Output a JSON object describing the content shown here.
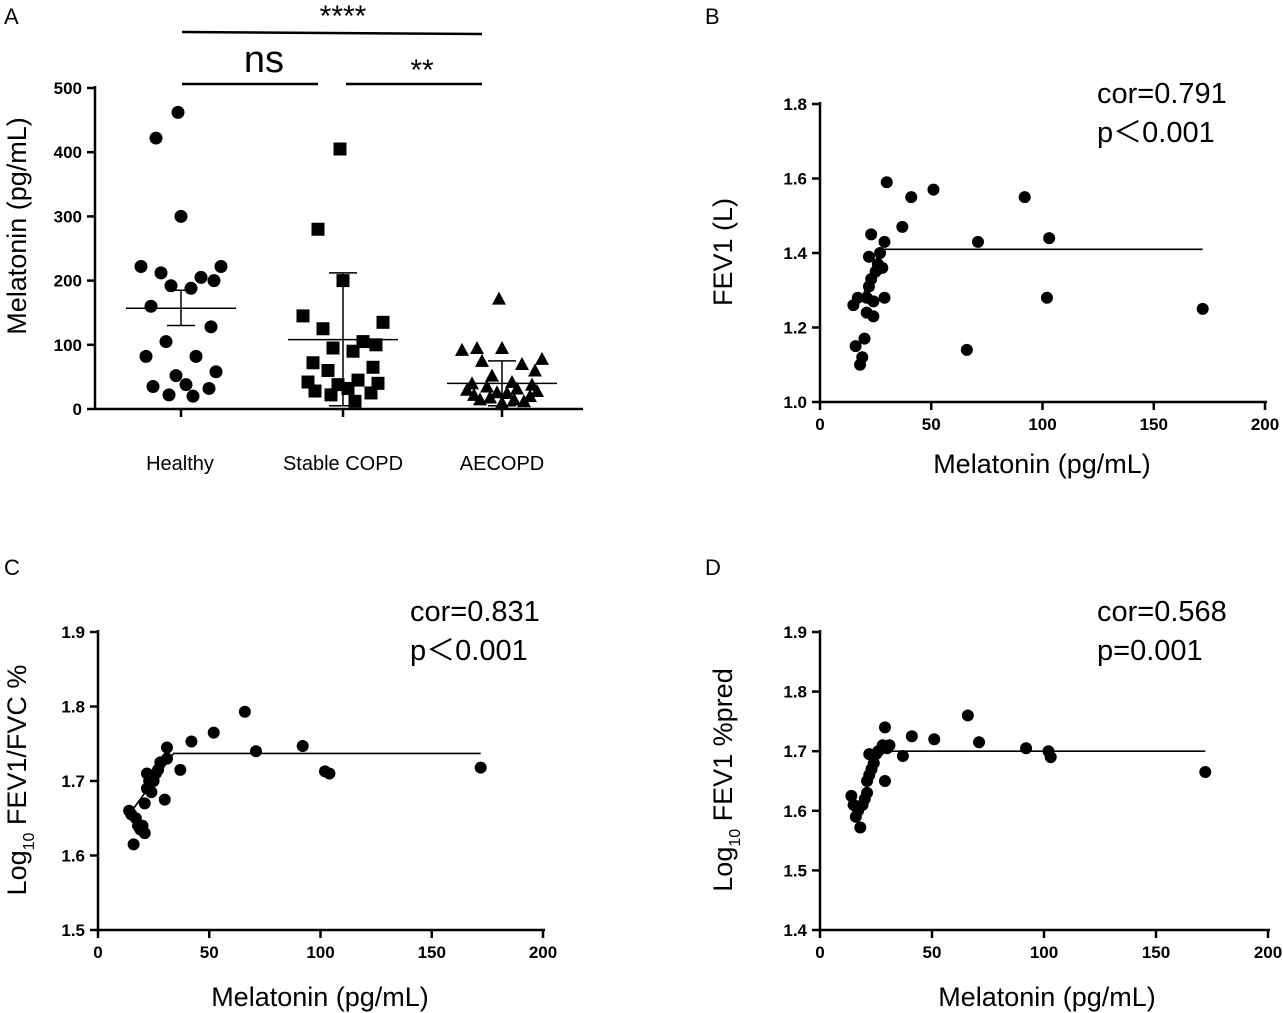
{
  "chart_data": [
    {
      "panel": "A",
      "type": "scatter",
      "ylabel": "Melatonin (pg/mL)",
      "ylim": [
        0,
        500
      ],
      "yticks": [
        0,
        100,
        200,
        300,
        400,
        500
      ],
      "categories": [
        "Healthy",
        "Stable COPD",
        "AECOPD"
      ],
      "series": [
        {
          "name": "Healthy",
          "marker": "circle",
          "mean": 157,
          "sem_low": 130,
          "sem_high": 185,
          "values": [
            462,
            422,
            300,
            222,
            222,
            212,
            205,
            200,
            192,
            188,
            160,
            128,
            105,
            82,
            82,
            58,
            52,
            38,
            35,
            32,
            22,
            20
          ]
        },
        {
          "name": "Stable COPD",
          "marker": "square",
          "mean": 108,
          "sd_low": 5,
          "sd_high": 212,
          "values": [
            405,
            280,
            200,
            145,
            135,
            125,
            105,
            100,
            95,
            90,
            72,
            65,
            60,
            45,
            42,
            40,
            38,
            32,
            28,
            25,
            22,
            12
          ]
        },
        {
          "name": "AECOPD",
          "marker": "triangle",
          "mean": 40,
          "sd_low": 5,
          "sd_high": 75,
          "values": [
            172,
            95,
            95,
            92,
            78,
            75,
            70,
            60,
            52,
            42,
            40,
            38,
            35,
            32,
            30,
            28,
            26,
            25,
            22,
            20,
            18,
            15,
            15,
            12,
            10
          ]
        }
      ],
      "comparisons": [
        {
          "groups": [
            "Healthy",
            "AECOPD"
          ],
          "label": "****"
        },
        {
          "groups": [
            "Healthy",
            "Stable COPD"
          ],
          "label": "ns"
        },
        {
          "groups": [
            "Stable COPD",
            "AECOPD"
          ],
          "label": "**"
        }
      ]
    },
    {
      "panel": "B",
      "type": "scatter",
      "xlabel": "Melatonin (pg/mL)",
      "ylabel": "FEV1 (L)",
      "xlim": [
        0,
        200
      ],
      "ylim": [
        1.0,
        1.8
      ],
      "xticks": [
        0,
        50,
        100,
        150,
        200
      ],
      "yticks": [
        1.0,
        1.2,
        1.4,
        1.6,
        1.8
      ],
      "ytick_labels": [
        "1.0",
        "1.2",
        "1.4",
        "1.6",
        "1.8"
      ],
      "stat_lines": [
        "cor=0.791",
        "p＜0.001"
      ],
      "fit": {
        "x_break": 27,
        "plateau": 1.41,
        "start": [
          19,
          1.28
        ]
      },
      "points": [
        [
          15,
          1.26
        ],
        [
          16,
          1.15
        ],
        [
          17,
          1.28
        ],
        [
          18,
          1.1
        ],
        [
          19,
          1.12
        ],
        [
          20,
          1.17
        ],
        [
          21,
          1.28
        ],
        [
          21,
          1.24
        ],
        [
          22,
          1.31
        ],
        [
          22,
          1.39
        ],
        [
          23,
          1.33
        ],
        [
          23,
          1.45
        ],
        [
          24,
          1.27
        ],
        [
          24,
          1.23
        ],
        [
          25,
          1.35
        ],
        [
          26,
          1.37
        ],
        [
          27,
          1.4
        ],
        [
          28,
          1.36
        ],
        [
          29,
          1.28
        ],
        [
          29,
          1.43
        ],
        [
          30,
          1.59
        ],
        [
          37,
          1.47
        ],
        [
          41,
          1.55
        ],
        [
          51,
          1.57
        ],
        [
          66,
          1.14
        ],
        [
          71,
          1.43
        ],
        [
          92,
          1.55
        ],
        [
          102,
          1.28
        ],
        [
          103,
          1.44
        ],
        [
          172,
          1.25
        ]
      ]
    },
    {
      "panel": "C",
      "type": "scatter",
      "xlabel": "Melatonin (pg/mL)",
      "ylabel": "Log10 FEV1/FVC %",
      "xlim": [
        0,
        200
      ],
      "ylim": [
        1.5,
        1.9
      ],
      "xticks": [
        0,
        50,
        100,
        150,
        200
      ],
      "yticks": [
        1.5,
        1.6,
        1.7,
        1.8,
        1.9
      ],
      "ytick_labels": [
        "1.5",
        "1.6",
        "1.7",
        "1.8",
        "1.9"
      ],
      "stat_lines": [
        "cor=0.831",
        "p＜0.001"
      ],
      "fit": {
        "x_break": 34,
        "plateau": 1.737,
        "start": [
          14,
          1.655
        ]
      },
      "points": [
        [
          14,
          1.66
        ],
        [
          15,
          1.655
        ],
        [
          16,
          1.615
        ],
        [
          17,
          1.65
        ],
        [
          18,
          1.64
        ],
        [
          19,
          1.635
        ],
        [
          20,
          1.64
        ],
        [
          21,
          1.67
        ],
        [
          21,
          1.63
        ],
        [
          22,
          1.69
        ],
        [
          22,
          1.71
        ],
        [
          23,
          1.7
        ],
        [
          24,
          1.685
        ],
        [
          25,
          1.7
        ],
        [
          26,
          1.71
        ],
        [
          27,
          1.715
        ],
        [
          28,
          1.725
        ],
        [
          30,
          1.675
        ],
        [
          31,
          1.73
        ],
        [
          31,
          1.745
        ],
        [
          37,
          1.715
        ],
        [
          42,
          1.753
        ],
        [
          52,
          1.765
        ],
        [
          66,
          1.793
        ],
        [
          71,
          1.74
        ],
        [
          92,
          1.747
        ],
        [
          102,
          1.713
        ],
        [
          104,
          1.71
        ],
        [
          172,
          1.718
        ]
      ]
    },
    {
      "panel": "D",
      "type": "scatter",
      "xlabel": "Melatonin (pg/mL)",
      "ylabel": "Log10 FEV1 %pred",
      "xlim": [
        0,
        200
      ],
      "ylim": [
        1.4,
        1.9
      ],
      "xticks": [
        0,
        50,
        100,
        150,
        200
      ],
      "yticks": [
        1.4,
        1.5,
        1.6,
        1.7,
        1.8,
        1.9
      ],
      "ytick_labels": [
        "1.4",
        "1.5",
        "1.6",
        "1.7",
        "1.8",
        "1.9"
      ],
      "stat_lines": [
        "cor=0.568",
        "p=0.001"
      ],
      "fit": {
        "x_break": 26,
        "plateau": 1.7,
        "start": [
          17,
          1.6
        ]
      },
      "points": [
        [
          14,
          1.625
        ],
        [
          15,
          1.61
        ],
        [
          16,
          1.59
        ],
        [
          17,
          1.6
        ],
        [
          18,
          1.572
        ],
        [
          19,
          1.61
        ],
        [
          20,
          1.62
        ],
        [
          21,
          1.63
        ],
        [
          21,
          1.65
        ],
        [
          22,
          1.66
        ],
        [
          22,
          1.695
        ],
        [
          23,
          1.67
        ],
        [
          24,
          1.68
        ],
        [
          25,
          1.695
        ],
        [
          26,
          1.7
        ],
        [
          28,
          1.71
        ],
        [
          29,
          1.74
        ],
        [
          29,
          1.65
        ],
        [
          30,
          1.705
        ],
        [
          31,
          1.71
        ],
        [
          37,
          1.692
        ],
        [
          41,
          1.725
        ],
        [
          51,
          1.72
        ],
        [
          66,
          1.76
        ],
        [
          71,
          1.715
        ],
        [
          92,
          1.705
        ],
        [
          102,
          1.7
        ],
        [
          103,
          1.69
        ],
        [
          172,
          1.665
        ]
      ]
    }
  ],
  "panel_labels": {
    "A": "A",
    "B": "B",
    "C": "C",
    "D": "D"
  }
}
